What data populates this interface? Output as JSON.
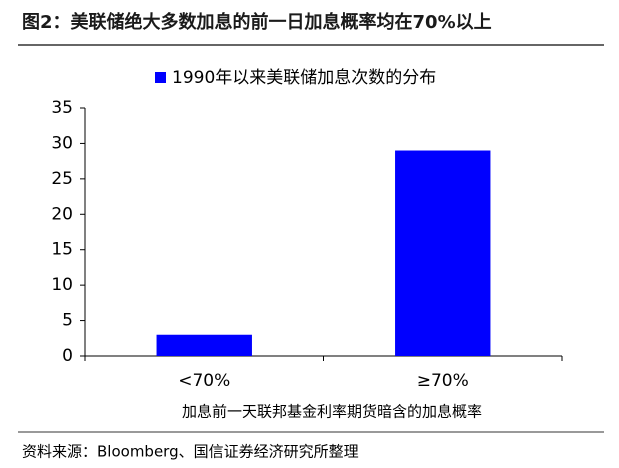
{
  "chart_data": {
    "type": "bar",
    "title": "图2：美联储绝大多数加息的前一日加息概率均在70%以上",
    "x_label": "加息前一天联邦基金利率期货暗含的加息概率",
    "source": "资料来源：Bloomberg、国信证券经济研究所整理",
    "categories": [
      "<70%",
      "≥70%"
    ],
    "series": [
      {
        "name": "1990年以来美联储加息次数的分布",
        "color": "#0000ff",
        "values": [
          3,
          29
        ]
      }
    ],
    "ylim": [
      0,
      35
    ],
    "yticks": [
      0,
      5,
      10,
      15,
      20,
      25,
      30,
      35
    ],
    "grid": false,
    "legend": "top"
  }
}
